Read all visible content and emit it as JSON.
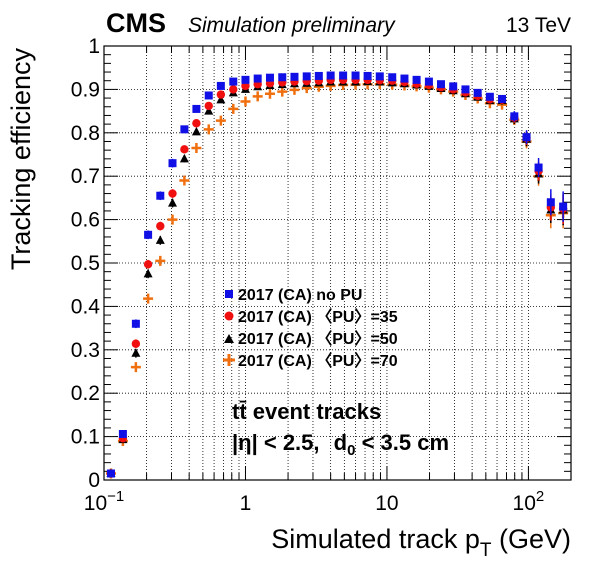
{
  "header": {
    "experiment": "CMS",
    "status": "Simulation preliminary",
    "energy": "13 TeV"
  },
  "annotations": {
    "process": "tt̄ event tracks",
    "cuts_eta": "|η| < 2.5,",
    "cuts_d0_prefix": "d",
    "cuts_d0_sub": "0",
    "cuts_d0_suffix": " < 3.5 cm"
  },
  "axes": {
    "xlabel_main": "Simulated track p",
    "xlabel_sub": "T",
    "xlabel_unit": " (GeV)",
    "ylabel": "Tracking efficiency"
  },
  "colors": {
    "nopu": "#1010e6",
    "pu35": "#f01010",
    "pu50": "#000000",
    "pu70": "#f07010"
  },
  "chart_data": {
    "type": "scatter",
    "x_scale": "log",
    "xlim": [
      0.1,
      200
    ],
    "ylim": [
      0,
      1
    ],
    "grid": true,
    "legend_position": "center-left",
    "x_ticks": [
      {
        "value": 0.1,
        "base": "10",
        "exp": "−1"
      },
      {
        "value": 1,
        "label": "1"
      },
      {
        "value": 10,
        "label": "10"
      },
      {
        "value": 100,
        "base": "10",
        "exp": "2"
      }
    ],
    "y_ticks": [
      0,
      0.1,
      0.2,
      0.3,
      0.4,
      0.5,
      0.6,
      0.7,
      0.8,
      0.9,
      1
    ],
    "y_tick_labels": [
      "0",
      "0.1",
      "0.2",
      "0.3",
      "0.4",
      "0.5",
      "0.6",
      "0.7",
      "0.8",
      "0.9",
      "1"
    ],
    "series": [
      {
        "name": "2017 (CA) no PU",
        "key": "nopu",
        "marker": "square",
        "x": [
          0.112,
          0.136,
          0.168,
          0.205,
          0.25,
          0.305,
          0.37,
          0.45,
          0.55,
          0.67,
          0.82,
          1.0,
          1.22,
          1.49,
          1.82,
          2.22,
          2.71,
          3.3,
          4.0,
          4.9,
          6.0,
          7.3,
          8.9,
          10.9,
          13.3,
          16.2,
          19.8,
          24.1,
          29.4,
          35.9,
          43.8,
          53.4,
          65.1,
          79.5,
          97.0,
          118.0,
          144.0,
          176.0
        ],
        "y": [
          0.015,
          0.106,
          0.36,
          0.565,
          0.655,
          0.73,
          0.808,
          0.855,
          0.886,
          0.908,
          0.918,
          0.922,
          0.925,
          0.927,
          0.928,
          0.929,
          0.93,
          0.931,
          0.932,
          0.932,
          0.932,
          0.931,
          0.93,
          0.928,
          0.925,
          0.922,
          0.918,
          0.912,
          0.907,
          0.9,
          0.892,
          0.883,
          0.878,
          0.838,
          0.79,
          0.72,
          0.64,
          0.63
        ],
        "err": [
          0.005,
          0.008,
          0.01,
          0.01,
          0.01,
          0.01,
          0.008,
          0.007,
          0.006,
          0.005,
          0.004,
          0.004,
          0.004,
          0.004,
          0.004,
          0.004,
          0.004,
          0.004,
          0.004,
          0.004,
          0.004,
          0.004,
          0.004,
          0.004,
          0.004,
          0.004,
          0.004,
          0.005,
          0.005,
          0.006,
          0.007,
          0.008,
          0.009,
          0.012,
          0.016,
          0.022,
          0.03,
          0.035
        ]
      },
      {
        "name": "2017 (CA) 〈PU〉=35",
        "key": "pu35",
        "marker": "circle",
        "x": [
          0.112,
          0.136,
          0.168,
          0.205,
          0.25,
          0.305,
          0.37,
          0.45,
          0.55,
          0.67,
          0.82,
          1.0,
          1.22,
          1.49,
          1.82,
          2.22,
          2.71,
          3.3,
          4.0,
          4.9,
          6.0,
          7.3,
          8.9,
          10.9,
          13.3,
          16.2,
          19.8,
          24.1,
          29.4,
          35.9,
          43.8,
          53.4,
          65.1,
          79.5,
          97.0,
          118.0,
          144.0,
          176.0
        ],
        "y": [
          0.015,
          0.096,
          0.314,
          0.497,
          0.585,
          0.66,
          0.762,
          0.822,
          0.862,
          0.888,
          0.9,
          0.908,
          0.912,
          0.914,
          0.916,
          0.918,
          0.919,
          0.92,
          0.922,
          0.922,
          0.922,
          0.922,
          0.921,
          0.92,
          0.917,
          0.913,
          0.91,
          0.905,
          0.9,
          0.893,
          0.885,
          0.877,
          0.876,
          0.835,
          0.788,
          0.712,
          0.628,
          0.625
        ],
        "err": [
          0.005,
          0.008,
          0.01,
          0.01,
          0.01,
          0.01,
          0.008,
          0.007,
          0.006,
          0.005,
          0.004,
          0.004,
          0.004,
          0.004,
          0.004,
          0.004,
          0.004,
          0.004,
          0.004,
          0.004,
          0.004,
          0.004,
          0.004,
          0.004,
          0.004,
          0.004,
          0.004,
          0.005,
          0.005,
          0.006,
          0.007,
          0.008,
          0.009,
          0.012,
          0.016,
          0.022,
          0.03,
          0.035
        ]
      },
      {
        "name": "2017 (CA) 〈PU〉=50",
        "key": "pu50",
        "marker": "triangle",
        "x": [
          0.112,
          0.136,
          0.168,
          0.205,
          0.25,
          0.305,
          0.37,
          0.45,
          0.55,
          0.67,
          0.82,
          1.0,
          1.22,
          1.49,
          1.82,
          2.22,
          2.71,
          3.3,
          4.0,
          4.9,
          6.0,
          7.3,
          8.9,
          10.9,
          13.3,
          16.2,
          19.8,
          24.1,
          29.4,
          35.9,
          43.8,
          53.4,
          65.1,
          79.5,
          97.0,
          118.0,
          144.0,
          176.0
        ],
        "y": [
          0.015,
          0.093,
          0.292,
          0.475,
          0.552,
          0.638,
          0.74,
          0.802,
          0.85,
          0.876,
          0.892,
          0.9,
          0.906,
          0.909,
          0.911,
          0.913,
          0.914,
          0.915,
          0.917,
          0.917,
          0.917,
          0.918,
          0.917,
          0.915,
          0.913,
          0.91,
          0.907,
          0.902,
          0.897,
          0.89,
          0.882,
          0.874,
          0.874,
          0.832,
          0.785,
          0.705,
          0.622,
          0.622
        ],
        "err": [
          0.005,
          0.008,
          0.01,
          0.01,
          0.01,
          0.01,
          0.008,
          0.007,
          0.006,
          0.005,
          0.004,
          0.004,
          0.004,
          0.004,
          0.004,
          0.004,
          0.004,
          0.004,
          0.004,
          0.004,
          0.004,
          0.004,
          0.004,
          0.004,
          0.004,
          0.004,
          0.004,
          0.005,
          0.005,
          0.006,
          0.007,
          0.008,
          0.009,
          0.012,
          0.016,
          0.022,
          0.03,
          0.035
        ]
      },
      {
        "name": "2017 (CA) 〈PU〉=70",
        "key": "pu70",
        "marker": "cross",
        "x": [
          0.112,
          0.136,
          0.168,
          0.205,
          0.25,
          0.305,
          0.37,
          0.45,
          0.55,
          0.67,
          0.82,
          1.0,
          1.22,
          1.49,
          1.82,
          2.22,
          2.71,
          3.3,
          4.0,
          4.9,
          6.0,
          7.3,
          8.9,
          10.9,
          13.3,
          16.2,
          19.8,
          24.1,
          29.4,
          35.9,
          43.8,
          53.4,
          65.1,
          79.5,
          97.0,
          118.0,
          144.0,
          176.0
        ],
        "y": [
          0.015,
          0.09,
          0.26,
          0.418,
          0.505,
          0.6,
          0.69,
          0.765,
          0.808,
          0.828,
          0.855,
          0.872,
          0.884,
          0.89,
          0.895,
          0.899,
          0.903,
          0.906,
          0.908,
          0.91,
          0.911,
          0.912,
          0.912,
          0.911,
          0.909,
          0.907,
          0.904,
          0.9,
          0.895,
          0.887,
          0.879,
          0.868,
          0.865,
          0.83,
          0.78,
          0.7,
          0.61,
          0.615
        ],
        "err": [
          0.005,
          0.008,
          0.01,
          0.01,
          0.01,
          0.01,
          0.008,
          0.007,
          0.006,
          0.005,
          0.004,
          0.004,
          0.004,
          0.004,
          0.004,
          0.004,
          0.004,
          0.004,
          0.004,
          0.004,
          0.004,
          0.004,
          0.004,
          0.004,
          0.004,
          0.004,
          0.004,
          0.005,
          0.005,
          0.006,
          0.007,
          0.008,
          0.009,
          0.012,
          0.016,
          0.022,
          0.03,
          0.035
        ]
      }
    ]
  }
}
